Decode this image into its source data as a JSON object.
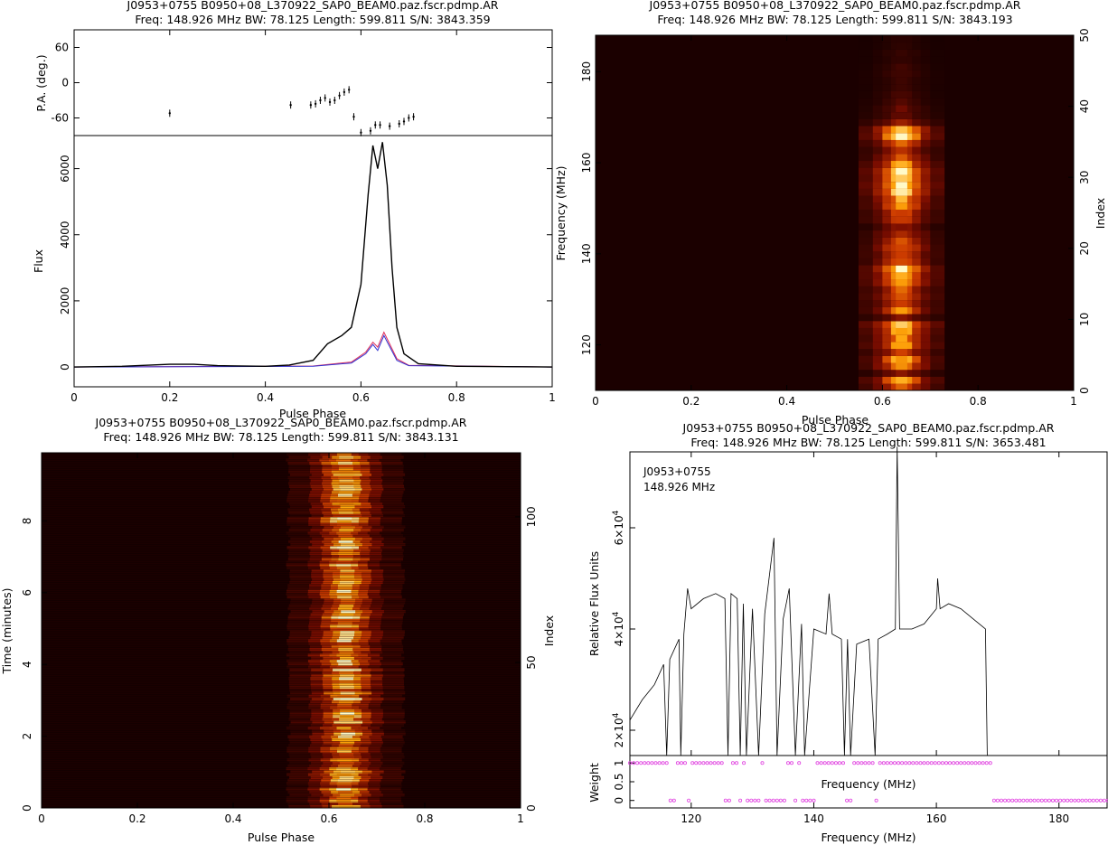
{
  "colors": {
    "heat_bg": "#1b0000",
    "heat_mid": "#a82800",
    "heat_hot": "#ffb000",
    "heat_peak": "#fff8c0",
    "profile_total": "#000000",
    "profile_linear": "#e0305a",
    "profile_circular": "#3030d0",
    "weights": "#e040e0"
  },
  "chart_data": [
    {
      "type": "line",
      "panel": "polarization-profile",
      "title": "J0953+0755  B0950+08_L370922_SAP0_BEAM0.paz.fscr.pdmp.AR",
      "subtitle": "Freq: 148.926 MHz BW: 78.125 Length: 599.811 S/N: 3843.359",
      "xlabel": "Pulse Phase",
      "xlim": [
        0,
        1
      ],
      "xticks": [
        "0",
        "0.2",
        "0.4",
        "0.6",
        "0.8",
        "1"
      ],
      "pa": {
        "ylabel": "P.A. (deg.)",
        "ylim": [
          -90,
          90
        ],
        "yticks": [
          "-60",
          "0",
          "60"
        ],
        "points": [
          [
            0.2,
            -52
          ],
          [
            0.453,
            -38
          ],
          [
            0.495,
            -38
          ],
          [
            0.505,
            -36
          ],
          [
            0.515,
            -30
          ],
          [
            0.525,
            -26
          ],
          [
            0.535,
            -33
          ],
          [
            0.545,
            -30
          ],
          [
            0.555,
            -22
          ],
          [
            0.565,
            -16
          ],
          [
            0.575,
            -12
          ],
          [
            0.585,
            -58
          ],
          [
            0.6,
            -85
          ],
          [
            0.62,
            -82
          ],
          [
            0.63,
            -72
          ],
          [
            0.64,
            -72
          ],
          [
            0.66,
            -74
          ],
          [
            0.68,
            -70
          ],
          [
            0.69,
            -66
          ],
          [
            0.7,
            -60
          ],
          [
            0.71,
            -58
          ]
        ]
      },
      "flux": {
        "ylabel": "Flux",
        "ylim": [
          -600,
          7000
        ],
        "yticks": [
          "0",
          "2000",
          "4000",
          "6000"
        ],
        "series": [
          {
            "values": [
              [
                0,
                0
              ],
              [
                0.1,
                20
              ],
              [
                0.2,
                80
              ],
              [
                0.25,
                80
              ],
              [
                0.3,
                40
              ],
              [
                0.4,
                20
              ],
              [
                0.45,
                60
              ],
              [
                0.5,
                200
              ],
              [
                0.53,
                700
              ],
              [
                0.56,
                950
              ],
              [
                0.58,
                1200
              ],
              [
                0.6,
                2500
              ],
              [
                0.615,
                5200
              ],
              [
                0.625,
                6700
              ],
              [
                0.635,
                6000
              ],
              [
                0.645,
                6800
              ],
              [
                0.655,
                5500
              ],
              [
                0.665,
                3000
              ],
              [
                0.675,
                1200
              ],
              [
                0.69,
                400
              ],
              [
                0.72,
                100
              ],
              [
                0.8,
                20
              ],
              [
                1,
                0
              ]
            ]
          },
          {
            "values": [
              [
                0,
                0
              ],
              [
                0.5,
                30
              ],
              [
                0.58,
                150
              ],
              [
                0.61,
                450
              ],
              [
                0.625,
                750
              ],
              [
                0.635,
                600
              ],
              [
                0.648,
                1050
              ],
              [
                0.66,
                700
              ],
              [
                0.675,
                250
              ],
              [
                0.7,
                50
              ],
              [
                1,
                0
              ]
            ]
          },
          {
            "values": [
              [
                0,
                0
              ],
              [
                0.5,
                20
              ],
              [
                0.58,
                120
              ],
              [
                0.61,
                400
              ],
              [
                0.625,
                680
              ],
              [
                0.635,
                500
              ],
              [
                0.648,
                950
              ],
              [
                0.66,
                620
              ],
              [
                0.675,
                200
              ],
              [
                0.7,
                40
              ],
              [
                1,
                0
              ]
            ]
          }
        ]
      }
    },
    {
      "type": "heatmap",
      "panel": "phase-frequency",
      "title": "J0953+0755  B0950+08_L370922_SAP0_BEAM0.paz.fscr.pdmp.AR",
      "subtitle": "Freq: 148.926 MHz BW: 78.125 Length: 599.811 S/N: 3843.193",
      "xlabel": "Pulse Phase",
      "ylabel": "Frequency (MHz)",
      "y2label": "Index",
      "xlim": [
        0,
        1
      ],
      "ylim": [
        110,
        188
      ],
      "y2lim": [
        0,
        50
      ],
      "xticks": [
        "0",
        "0.2",
        "0.4",
        "0.6",
        "0.8",
        "1"
      ],
      "yticks": [
        "120",
        "140",
        "160",
        "180"
      ],
      "y2ticks": [
        "0",
        "10",
        "20",
        "30",
        "40",
        "50"
      ],
      "pulse_center_phase": 0.64,
      "row_intensity": [
        0.6,
        0.8,
        0.3,
        0.7,
        0.8,
        0.5,
        0.75,
        0.7,
        0.8,
        0.9,
        0.3,
        0.7,
        0.5,
        0.6,
        0.55,
        0.7,
        0.85,
        0.9,
        0.6,
        0.5,
        0.6,
        0.5,
        0.45,
        0.3,
        0.55,
        0.55,
        0.75,
        0.75,
        0.9,
        1.0,
        1.0,
        0.95,
        0.75,
        0.5,
        0.4,
        0.55,
        0.95,
        0.85,
        0.35,
        0.2,
        0.2,
        0.15,
        0.12,
        0.1,
        0.1,
        0.12,
        0.1,
        0.08,
        0.08,
        0.06,
        0.05
      ]
    },
    {
      "type": "heatmap",
      "panel": "phase-time",
      "title": "J0953+0755  B0950+08_L370922_SAP0_BEAM0.paz.fscr.pdmp.AR",
      "subtitle": "Freq: 148.926 MHz BW: 78.125 Length: 599.811 S/N: 3843.131",
      "xlabel": "Pulse Phase",
      "ylabel": "Time (minutes)",
      "y2label": "Index",
      "xlim": [
        0,
        1
      ],
      "ylim": [
        0,
        9.9
      ],
      "y2lim": [
        0,
        122
      ],
      "xticks": [
        "0",
        "0.2",
        "0.4",
        "0.6",
        "0.8",
        "1"
      ],
      "yticks": [
        "0",
        "2",
        "4",
        "6",
        "8"
      ],
      "y2ticks": [
        "0",
        "50",
        "100"
      ],
      "pulse_center_phase": 0.635
    },
    {
      "type": "line",
      "panel": "bandpass",
      "title": "J0953+0755  B0950+08_L370922_SAP0_BEAM0.paz.fscr.pdmp.AR",
      "subtitle": "Freq: 148.926 MHz BW: 78.125 Length: 599.811 S/N: 3653.481",
      "annotation_source": "J0953+0755",
      "annotation_freq": "148.926 MHz",
      "xlabel": "Frequency (MHz)",
      "xlabel_mid": "Frequency (MHz)",
      "xlim": [
        110,
        188
      ],
      "xticks": [
        "120",
        "140",
        "160",
        "180"
      ],
      "flux": {
        "ylabel": "Relative Flux Units",
        "ylim": [
          15000,
          75000
        ],
        "yticks": [
          2,
          4,
          6
        ],
        "ytick_label_prefix": "×10",
        "ytick_label_exp": "4",
        "values": [
          [
            110,
            22000
          ],
          [
            112,
            26000
          ],
          [
            114,
            29000
          ],
          [
            115.5,
            33000
          ],
          [
            116,
            10000
          ],
          [
            116.5,
            34000
          ],
          [
            118,
            38000
          ],
          [
            118.3,
            10000
          ],
          [
            118.8,
            39000
          ],
          [
            119.4,
            48000
          ],
          [
            120,
            44000
          ],
          [
            122,
            46000
          ],
          [
            124,
            47000
          ],
          [
            125.5,
            46000
          ],
          [
            126,
            10000
          ],
          [
            126.5,
            47000
          ],
          [
            127.5,
            46000
          ],
          [
            128,
            10000
          ],
          [
            128.5,
            45000
          ],
          [
            129,
            10000
          ],
          [
            130,
            44000
          ],
          [
            131,
            10000
          ],
          [
            132,
            43000
          ],
          [
            133.5,
            58000
          ],
          [
            134,
            10000
          ],
          [
            135,
            42000
          ],
          [
            136,
            48000
          ],
          [
            137,
            10000
          ],
          [
            138,
            41000
          ],
          [
            138.5,
            10000
          ],
          [
            140,
            40000
          ],
          [
            142,
            39000
          ],
          [
            142.5,
            47000
          ],
          [
            143,
            39000
          ],
          [
            144.5,
            38000
          ],
          [
            145,
            10000
          ],
          [
            145.5,
            38000
          ],
          [
            146,
            10000
          ],
          [
            147,
            37000
          ],
          [
            149,
            38000
          ],
          [
            150,
            10000
          ],
          [
            150.5,
            38000
          ],
          [
            152,
            39000
          ],
          [
            153.3,
            40000
          ],
          [
            153.6,
            76000
          ],
          [
            154,
            40000
          ],
          [
            156,
            40000
          ],
          [
            158,
            41000
          ],
          [
            160,
            44000
          ],
          [
            160.2,
            50000
          ],
          [
            160.6,
            44000
          ],
          [
            162,
            45000
          ],
          [
            164,
            44000
          ],
          [
            166,
            42000
          ],
          [
            168,
            40000
          ],
          [
            168.3,
            10000
          ]
        ]
      },
      "weights": {
        "ylabel": "Weight",
        "ylim": [
          -0.2,
          1.2
        ],
        "yticks": [
          "0",
          "0.5",
          "1"
        ],
        "zero_ranges": [
          [
            116,
            117.5
          ],
          [
            119,
            120
          ],
          [
            125.3,
            126.5
          ],
          [
            127.5,
            128.5
          ],
          [
            129,
            131
          ],
          [
            132,
            135.5
          ],
          [
            136.5,
            137
          ],
          [
            138,
            140
          ],
          [
            145,
            146
          ],
          [
            150,
            150.5
          ],
          [
            168.8,
            188
          ]
        ]
      }
    }
  ]
}
